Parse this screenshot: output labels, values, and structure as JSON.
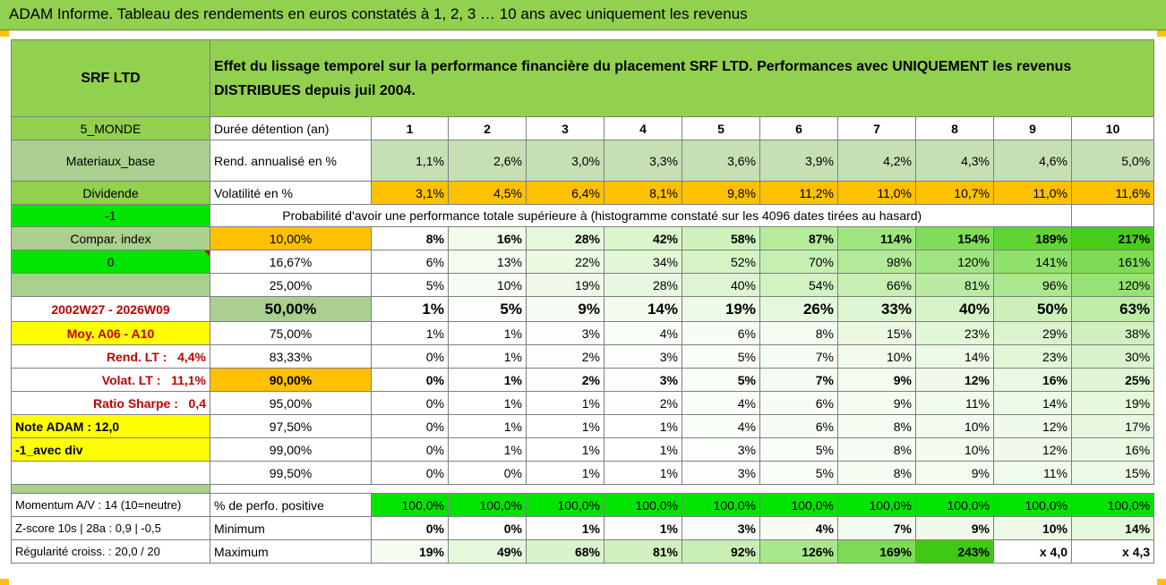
{
  "banner_title": "ADAM Informe. Tableau des rendements en euros constatés à 1, 2, 3 … 10 ans avec uniquement les revenus",
  "header": {
    "company": "SRF LTD",
    "description": "Effet du lissage temporel sur la performance financière du placement SRF LTD. Performances avec UNIQUEMENT les revenus DISTRIBUES depuis juil 2004."
  },
  "left": {
    "zone": "5_MONDE",
    "sector": "Materiaux_base",
    "dividend": "Dividende",
    "minus_one": "-1",
    "compar_index": "Compar. index",
    "zero": "0",
    "period": "2002W27 - 2026W09",
    "moy": "Moy. A06 - A10",
    "rend_lt_label": "Rend. LT :",
    "rend_lt_value": "4,4%",
    "volat_lt_label": "Volat. LT :",
    "volat_lt_value": "11,1%",
    "sharpe_label": "Ratio Sharpe :",
    "sharpe_value": "0,4",
    "note_adam": "Note ADAM : 12,0",
    "avec_div": "-1_avec div"
  },
  "durations": {
    "label": "Durée détention (an)",
    "years": [
      "1",
      "2",
      "3",
      "4",
      "5",
      "6",
      "7",
      "8",
      "9",
      "10"
    ]
  },
  "rend": {
    "label": "Rend. annualisé en %",
    "values": [
      "1,1%",
      "2,6%",
      "3,0%",
      "3,3%",
      "3,6%",
      "3,9%",
      "4,2%",
      "4,3%",
      "4,6%",
      "5,0%"
    ]
  },
  "volat": {
    "label": "Volatilité en %",
    "values": [
      "3,1%",
      "4,5%",
      "6,4%",
      "8,1%",
      "9,8%",
      "11,2%",
      "11,0%",
      "10,7%",
      "11,0%",
      "11,6%"
    ]
  },
  "prob_caption": "Probabilité d'avoir une performance totale supérieure à (histogramme constaté sur les 4096 dates tirées au hasard)",
  "prob_rows": [
    {
      "threshold": "10,00%",
      "values": [
        "8%",
        "16%",
        "28%",
        "42%",
        "58%",
        "87%",
        "114%",
        "154%",
        "189%",
        "217%"
      ]
    },
    {
      "threshold": "16,67%",
      "values": [
        "6%",
        "13%",
        "22%",
        "34%",
        "52%",
        "70%",
        "98%",
        "120%",
        "141%",
        "161%"
      ]
    },
    {
      "threshold": "25,00%",
      "values": [
        "5%",
        "10%",
        "19%",
        "28%",
        "40%",
        "54%",
        "66%",
        "81%",
        "96%",
        "120%"
      ]
    },
    {
      "threshold": "50,00%",
      "values": [
        "1%",
        "5%",
        "9%",
        "14%",
        "19%",
        "26%",
        "33%",
        "40%",
        "50%",
        "63%"
      ]
    },
    {
      "threshold": "75,00%",
      "values": [
        "1%",
        "1%",
        "3%",
        "4%",
        "6%",
        "8%",
        "15%",
        "23%",
        "29%",
        "38%"
      ]
    },
    {
      "threshold": "83,33%",
      "values": [
        "0%",
        "1%",
        "2%",
        "3%",
        "5%",
        "7%",
        "10%",
        "14%",
        "23%",
        "30%"
      ]
    },
    {
      "threshold": "90,00%",
      "values": [
        "0%",
        "1%",
        "2%",
        "3%",
        "5%",
        "7%",
        "9%",
        "12%",
        "16%",
        "25%"
      ]
    },
    {
      "threshold": "95,00%",
      "values": [
        "0%",
        "1%",
        "1%",
        "2%",
        "4%",
        "6%",
        "9%",
        "11%",
        "14%",
        "19%"
      ]
    },
    {
      "threshold": "97,50%",
      "values": [
        "0%",
        "1%",
        "1%",
        "1%",
        "4%",
        "6%",
        "8%",
        "10%",
        "12%",
        "17%"
      ]
    },
    {
      "threshold": "99,00%",
      "values": [
        "0%",
        "1%",
        "1%",
        "1%",
        "3%",
        "5%",
        "8%",
        "10%",
        "12%",
        "16%"
      ]
    },
    {
      "threshold": "99,50%",
      "values": [
        "0%",
        "0%",
        "1%",
        "1%",
        "3%",
        "5%",
        "8%",
        "9%",
        "11%",
        "15%"
      ]
    }
  ],
  "bottom": {
    "momentum": "Momentum A/V : 14 (10=neutre)",
    "zscore": "Z-score 10s | 28a : 0,9 | -0,5",
    "regularite": "Régularité croiss. : 20,0 / 20",
    "positive": {
      "label": "% de perfo. positive",
      "values": [
        "100,0%",
        "100,0%",
        "100,0%",
        "100,0%",
        "100,0%",
        "100,0%",
        "100,0%",
        "100,0%",
        "100,0%",
        "100,0%"
      ]
    },
    "minimum": {
      "label": "Minimum",
      "values": [
        "0%",
        "0%",
        "1%",
        "1%",
        "3%",
        "4%",
        "7%",
        "9%",
        "10%",
        "14%"
      ]
    },
    "maximum": {
      "label": "Maximum",
      "values": [
        "19%",
        "49%",
        "68%",
        "81%",
        "92%",
        "126%",
        "169%",
        "243%",
        "x 4,0",
        "x 4,3"
      ]
    }
  },
  "colors": {
    "header_green": "#92d050",
    "orange": "#ffc000",
    "yellow": "#ffff00",
    "bright_green": "#00e400",
    "red_text": "#c00000"
  }
}
